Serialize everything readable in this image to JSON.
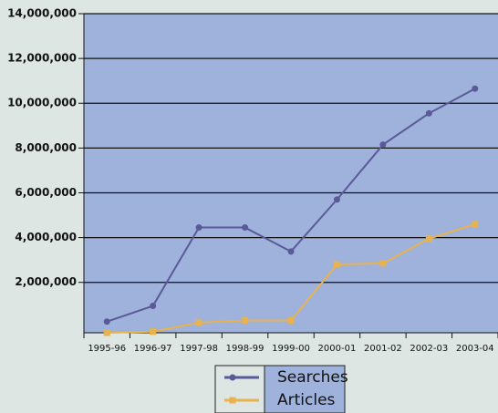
{
  "chart_data": {
    "type": "line",
    "categories": [
      "1995-96",
      "1996-97",
      "1997-98",
      "1998-99",
      "1999-00",
      "2000-01",
      "2001-02",
      "2002-03",
      "2003-04"
    ],
    "series": [
      {
        "name": "Searches",
        "color": "#5a5a98",
        "marker": "circle",
        "values": [
          250000,
          950000,
          4450000,
          4450000,
          3380000,
          5700000,
          8150000,
          9550000,
          10650000
        ]
      },
      {
        "name": "Articles",
        "color": "#e8b24f",
        "marker": "square",
        "values": [
          -250000,
          -200000,
          200000,
          300000,
          300000,
          2800000,
          2850000,
          3950000,
          4600000
        ]
      }
    ],
    "ylim": [
      -250000,
      14000000
    ],
    "yticks": [
      {
        "value": 2000000,
        "label": "2,000,000"
      },
      {
        "value": 4000000,
        "label": "4,000,000"
      },
      {
        "value": 6000000,
        "label": "6,000,000"
      },
      {
        "value": 8000000,
        "label": "8,000,000"
      },
      {
        "value": 10000000,
        "label": "10,000,000"
      },
      {
        "value": 12000000,
        "label": "12,000,000"
      },
      {
        "value": 14000000,
        "label": "14,000,000"
      }
    ],
    "grid": true
  }
}
